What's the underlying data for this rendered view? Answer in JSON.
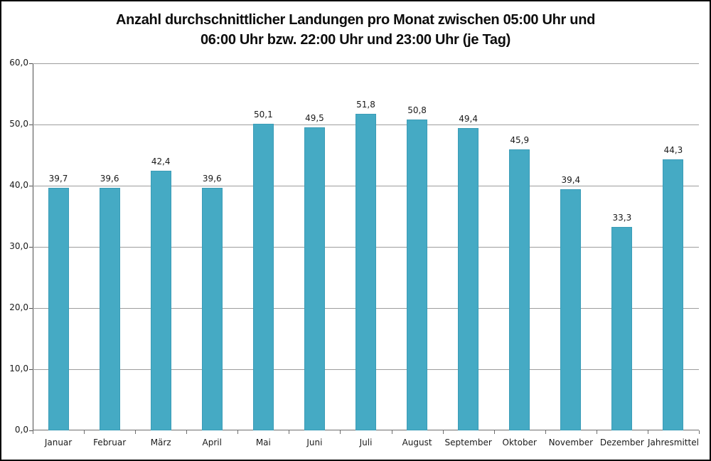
{
  "title": {
    "line1": "Anzahl durchschnittlicher Landungen pro Monat zwischen 05:00 Uhr und",
    "line2": "06:00 Uhr bzw. 22:00 Uhr und 23:00 Uhr (je Tag)"
  },
  "chart_data": {
    "type": "bar",
    "title": "Anzahl durchschnittlicher Landungen pro Monat zwischen 05:00 Uhr und 06:00 Uhr bzw. 22:00 Uhr und 23:00 Uhr (je Tag)",
    "categories": [
      "Januar",
      "Februar",
      "März",
      "April",
      "Mai",
      "Juni",
      "Juli",
      "August",
      "September",
      "Oktober",
      "November",
      "Dezember",
      "Jahresmittel"
    ],
    "values": [
      39.7,
      39.6,
      42.4,
      39.6,
      50.1,
      49.5,
      51.8,
      50.8,
      49.4,
      45.9,
      39.4,
      33.3,
      44.3
    ],
    "value_labels": [
      "39,7",
      "39,6",
      "42,4",
      "39,6",
      "50,1",
      "49,5",
      "51,8",
      "50,8",
      "49,4",
      "45,9",
      "39,4",
      "33,3",
      "44,3"
    ],
    "xlabel": "",
    "ylabel": "",
    "ylim": [
      0,
      60
    ],
    "ytick_step": 10,
    "ytick_labels": [
      "0,0",
      "10,0",
      "20,0",
      "30,0",
      "40,0",
      "50,0",
      "60,0"
    ],
    "grid": true,
    "legend": false,
    "colors": {
      "bar_fill": "#45aac4",
      "bar_border": "#3a9cb7",
      "gridline": "#9d9d9d",
      "axis": "#4d4d4d",
      "text": "#1a1a1a"
    }
  }
}
